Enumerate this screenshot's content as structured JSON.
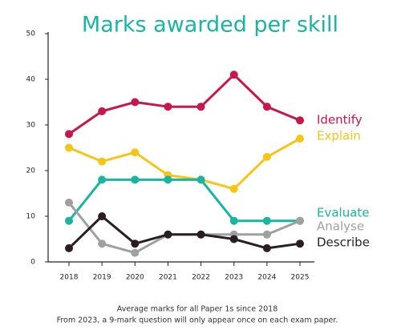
{
  "chart_data": {
    "type": "line",
    "title": "Marks awarded per skill",
    "categories": [
      "2018",
      "2019",
      "2020",
      "2021",
      "2022",
      "2023",
      "2024",
      "2025"
    ],
    "series": [
      {
        "name": "Identify",
        "color": "#c8174a",
        "values": [
          28,
          33,
          35,
          34,
          34,
          41,
          34,
          31
        ]
      },
      {
        "name": "Explain",
        "color": "#f5c518",
        "values": [
          25,
          22,
          24,
          19,
          18,
          16,
          23,
          27
        ]
      },
      {
        "name": "Evaluate",
        "color": "#1ab5a0",
        "values": [
          9,
          18,
          18,
          18,
          18,
          9,
          9,
          9
        ]
      },
      {
        "name": "Analyse",
        "color": "#a0a0a0",
        "values": [
          13,
          4,
          2,
          6,
          6,
          6,
          6,
          9
        ]
      },
      {
        "name": "Describe",
        "color": "#2a1e24",
        "values": [
          3,
          10,
          4,
          6,
          6,
          5,
          3,
          4
        ]
      }
    ],
    "ylim": [
      0,
      50
    ],
    "yticks": [
      0,
      10,
      20,
      30,
      40,
      50
    ],
    "notes": [
      "Average marks for all Paper 1s since 2018",
      "From 2023, a 9-mark question will only appear once on each exam paper."
    ]
  }
}
